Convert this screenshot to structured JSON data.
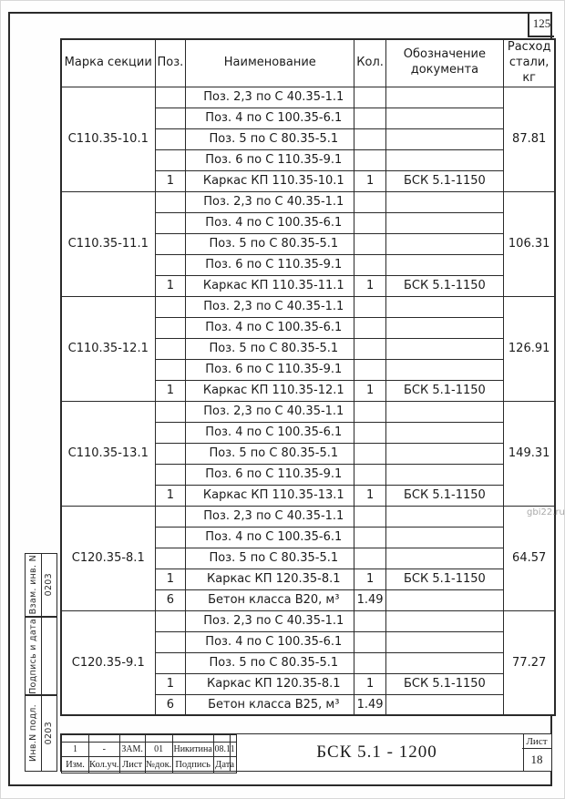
{
  "page": {
    "sheet_number_top": "125",
    "watermark": "gbi22.ru",
    "line_color": "#2a2a2a",
    "paper_color": "#fefefe",
    "watermark_color": "#a9a9a9"
  },
  "table": {
    "headers": {
      "mark": "Марка секции",
      "pos": "Поз.",
      "name": "Наименование",
      "qty": "Кол.",
      "doc": "Обозначение документа",
      "steel": "Расход стали, кг"
    },
    "groups": [
      {
        "mark": "С110.35-10.1",
        "steel": "87.81",
        "rows": [
          {
            "pos": "",
            "name": "Поз. 2,3 по С 40.35-1.1",
            "qty": "",
            "doc": ""
          },
          {
            "pos": "",
            "name": "Поз. 4 по С 100.35-6.1",
            "qty": "",
            "doc": ""
          },
          {
            "pos": "",
            "name": "Поз. 5 по С 80.35-5.1",
            "qty": "",
            "doc": ""
          },
          {
            "pos": "",
            "name": "Поз. 6 по С 110.35-9.1",
            "qty": "",
            "doc": ""
          },
          {
            "pos": "1",
            "name": "Каркас КП 110.35-10.1",
            "qty": "1",
            "doc": "БСК 5.1-1150"
          }
        ]
      },
      {
        "mark": "С110.35-11.1",
        "steel": "106.31",
        "rows": [
          {
            "pos": "",
            "name": "Поз. 2,3 по С 40.35-1.1",
            "qty": "",
            "doc": ""
          },
          {
            "pos": "",
            "name": "Поз. 4 по С 100.35-6.1",
            "qty": "",
            "doc": ""
          },
          {
            "pos": "",
            "name": "Поз. 5 по С 80.35-5.1",
            "qty": "",
            "doc": ""
          },
          {
            "pos": "",
            "name": "Поз. 6 по С 110.35-9.1",
            "qty": "",
            "doc": ""
          },
          {
            "pos": "1",
            "name": "Каркас КП 110.35-11.1",
            "qty": "1",
            "doc": "БСК 5.1-1150"
          }
        ]
      },
      {
        "mark": "С110.35-12.1",
        "steel": "126.91",
        "rows": [
          {
            "pos": "",
            "name": "Поз. 2,3 по С 40.35-1.1",
            "qty": "",
            "doc": ""
          },
          {
            "pos": "",
            "name": "Поз. 4 по С 100.35-6.1",
            "qty": "",
            "doc": ""
          },
          {
            "pos": "",
            "name": "Поз. 5 по С 80.35-5.1",
            "qty": "",
            "doc": ""
          },
          {
            "pos": "",
            "name": "Поз. 6 по С 110.35-9.1",
            "qty": "",
            "doc": ""
          },
          {
            "pos": "1",
            "name": "Каркас КП 110.35-12.1",
            "qty": "1",
            "doc": "БСК 5.1-1150"
          }
        ]
      },
      {
        "mark": "С110.35-13.1",
        "steel": "149.31",
        "rows": [
          {
            "pos": "",
            "name": "Поз. 2,3 по С 40.35-1.1",
            "qty": "",
            "doc": ""
          },
          {
            "pos": "",
            "name": "Поз. 4 по С 100.35-6.1",
            "qty": "",
            "doc": ""
          },
          {
            "pos": "",
            "name": "Поз. 5 по С 80.35-5.1",
            "qty": "",
            "doc": ""
          },
          {
            "pos": "",
            "name": "Поз. 6 по С 110.35-9.1",
            "qty": "",
            "doc": ""
          },
          {
            "pos": "1",
            "name": "Каркас КП 110.35-13.1",
            "qty": "1",
            "doc": "БСК 5.1-1150"
          }
        ]
      },
      {
        "mark": "С120.35-8.1",
        "steel": "64.57",
        "rows": [
          {
            "pos": "",
            "name": "Поз. 2,3 по С 40.35-1.1",
            "qty": "",
            "doc": ""
          },
          {
            "pos": "",
            "name": "Поз. 4 по С 100.35-6.1",
            "qty": "",
            "doc": ""
          },
          {
            "pos": "",
            "name": "Поз. 5 по С 80.35-5.1",
            "qty": "",
            "doc": ""
          },
          {
            "pos": "1",
            "name": "Каркас КП 120.35-8.1",
            "qty": "1",
            "doc": "БСК 5.1-1150"
          },
          {
            "pos": "6",
            "name": "Бетон класса В20, м³",
            "qty": "1.49",
            "doc": ""
          }
        ]
      },
      {
        "mark": "С120.35-9.1",
        "steel": "77.27",
        "rows": [
          {
            "pos": "",
            "name": "Поз. 2,3 по С 40.35-1.1",
            "qty": "",
            "doc": ""
          },
          {
            "pos": "",
            "name": "Поз. 4 по С 100.35-6.1",
            "qty": "",
            "doc": ""
          },
          {
            "pos": "",
            "name": "Поз. 5 по С 80.35-5.1",
            "qty": "",
            "doc": ""
          },
          {
            "pos": "1",
            "name": "Каркас КП 120.35-8.1",
            "qty": "1",
            "doc": "БСК 5.1-1150"
          },
          {
            "pos": "6",
            "name": "Бетон класса В25, м³",
            "qty": "1.49",
            "doc": ""
          }
        ]
      }
    ]
  },
  "sidebar": {
    "cells": [
      {
        "label": "Взам. инв. N",
        "value": "0203"
      },
      {
        "label": "Подпись и дата",
        "value": ""
      },
      {
        "label": "Инв.N подл.",
        "value": "0203"
      }
    ]
  },
  "titleblock": {
    "values": [
      "1",
      "-",
      "ЗАМ.",
      "01",
      "Никитина",
      "08.11"
    ],
    "labels": [
      "Изм.",
      "Кол.уч.",
      "Лист",
      "№док.",
      "Подпись",
      "Дата"
    ],
    "doc_number": "БСК 5.1 - 1200",
    "sheet_label": "Лист",
    "sheet_value": "18"
  }
}
